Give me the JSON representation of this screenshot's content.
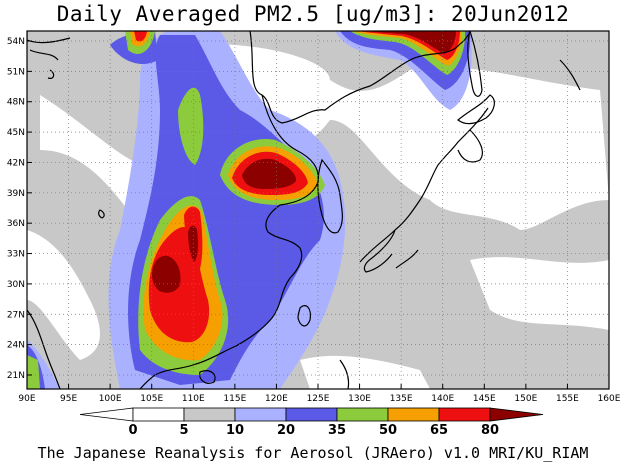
{
  "title": "Daily Averaged PM2.5 [ug/m3]: 20Jun2012",
  "footer": "The Japanese Reanalysis for Aerosol (JRAero) v1.0 MRI/KU_RIAM",
  "map": {
    "lon_ticks": [
      "90E",
      "95E",
      "100E",
      "105E",
      "110E",
      "115E",
      "120E",
      "125E",
      "130E",
      "135E",
      "140E",
      "145E",
      "150E",
      "155E",
      "160E"
    ],
    "lat_ticks": [
      "21N",
      "24N",
      "27N",
      "30N",
      "33N",
      "36N",
      "39N",
      "42N",
      "45N",
      "48N",
      "51N",
      "54N"
    ]
  },
  "legend": {
    "labels": [
      "0",
      "5",
      "10",
      "20",
      "35",
      "50",
      "65",
      "80"
    ],
    "colors": [
      "#ffffff",
      "#c8c8c8",
      "#aab2ff",
      "#5a5ae6",
      "#8ccc3c",
      "#f5a000",
      "#ee1010",
      "#8c0000"
    ]
  },
  "colors": {
    "c0": "#ffffff",
    "c5": "#c8c8c8",
    "c10": "#aab2ff",
    "c20": "#5a5ae6",
    "c35": "#8ccc3c",
    "c50": "#f5a000",
    "c65": "#ee1010",
    "c80": "#8c0000"
  }
}
